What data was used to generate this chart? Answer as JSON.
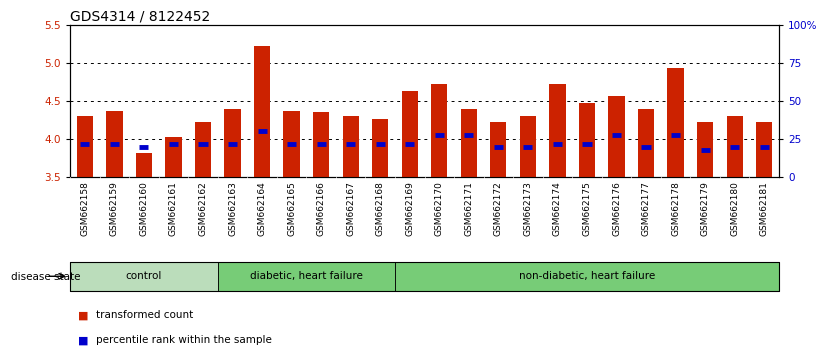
{
  "title": "GDS4314 / 8122452",
  "samples": [
    "GSM662158",
    "GSM662159",
    "GSM662160",
    "GSM662161",
    "GSM662162",
    "GSM662163",
    "GSM662164",
    "GSM662165",
    "GSM662166",
    "GSM662167",
    "GSM662168",
    "GSM662169",
    "GSM662170",
    "GSM662171",
    "GSM662172",
    "GSM662173",
    "GSM662174",
    "GSM662175",
    "GSM662176",
    "GSM662177",
    "GSM662178",
    "GSM662179",
    "GSM662180",
    "GSM662181"
  ],
  "transformed_count": [
    4.3,
    4.37,
    3.82,
    4.03,
    4.23,
    4.4,
    5.22,
    4.37,
    4.35,
    4.3,
    4.27,
    4.63,
    4.72,
    4.4,
    4.22,
    4.3,
    4.72,
    4.48,
    4.57,
    4.4,
    4.93,
    4.22,
    4.3,
    4.22
  ],
  "percentile_rank": [
    22,
    22,
    20,
    22,
    22,
    22,
    30,
    22,
    22,
    22,
    22,
    22,
    28,
    28,
    20,
    20,
    22,
    22,
    28,
    20,
    28,
    18,
    20,
    20
  ],
  "ylim_left": [
    3.5,
    5.5
  ],
  "ylim_right": [
    0,
    100
  ],
  "yticks_left": [
    3.5,
    4.0,
    4.5,
    5.0,
    5.5
  ],
  "yticks_right": [
    0,
    25,
    50,
    75,
    100
  ],
  "ytick_labels_right": [
    "0",
    "25",
    "50",
    "75",
    "100%"
  ],
  "bar_color": "#cc2200",
  "percentile_color": "#0000cc",
  "bar_width": 0.55,
  "groups": [
    {
      "label": "control",
      "start": 0,
      "end": 5,
      "color": "#bbddbb"
    },
    {
      "label": "diabetic, heart failure",
      "start": 5,
      "end": 11,
      "color": "#77cc77"
    },
    {
      "label": "non-diabetic, heart failure",
      "start": 11,
      "end": 24,
      "color": "#77cc77"
    }
  ],
  "disease_state_label": "disease state",
  "legend_items": [
    {
      "label": "transformed count",
      "color": "#cc2200"
    },
    {
      "label": "percentile rank within the sample",
      "color": "#0000cc"
    }
  ],
  "background_color": "#ffffff",
  "plot_bg_color": "#ffffff",
  "xtick_bg_color": "#cccccc",
  "title_fontsize": 10,
  "tick_fontsize": 6.5,
  "label_fontsize": 8
}
